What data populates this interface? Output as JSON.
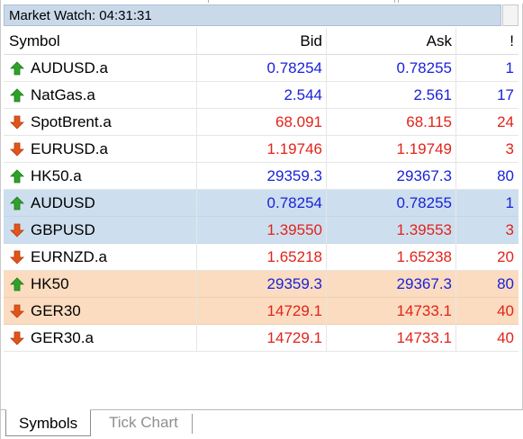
{
  "window": {
    "title": "Market Watch: 04:31:31"
  },
  "columns": {
    "symbol": "Symbol",
    "bid": "Bid",
    "ask": "Ask",
    "extra": "!"
  },
  "colors": {
    "up": "#1a22d8",
    "down": "#e2231a",
    "up_arrow": "#2fa12a",
    "down_arrow": "#e2541a",
    "selected_blue": "#cddfee",
    "selected_orange": "#fbdcc0",
    "titlebar": "#cad9ea"
  },
  "rows": [
    {
      "symbol": "AUDUSD.a",
      "bid": "0.78254",
      "ask": "0.78255",
      "spread": "1",
      "direction": "up",
      "highlight": "none"
    },
    {
      "symbol": "NatGas.a",
      "bid": "2.544",
      "ask": "2.561",
      "spread": "17",
      "direction": "up",
      "highlight": "none"
    },
    {
      "symbol": "SpotBrent.a",
      "bid": "68.091",
      "ask": "68.115",
      "spread": "24",
      "direction": "down",
      "highlight": "none"
    },
    {
      "symbol": "EURUSD.a",
      "bid": "1.19746",
      "ask": "1.19749",
      "spread": "3",
      "direction": "down",
      "highlight": "none"
    },
    {
      "symbol": "HK50.a",
      "bid": "29359.3",
      "ask": "29367.3",
      "spread": "80",
      "direction": "up",
      "highlight": "none"
    },
    {
      "symbol": "AUDUSD",
      "bid": "0.78254",
      "ask": "0.78255",
      "spread": "1",
      "direction": "up",
      "highlight": "blue"
    },
    {
      "symbol": "GBPUSD",
      "bid": "1.39550",
      "ask": "1.39553",
      "spread": "3",
      "direction": "down",
      "highlight": "blue"
    },
    {
      "symbol": "EURNZD.a",
      "bid": "1.65218",
      "ask": "1.65238",
      "spread": "20",
      "direction": "down",
      "highlight": "none"
    },
    {
      "symbol": "HK50",
      "bid": "29359.3",
      "ask": "29367.3",
      "spread": "80",
      "direction": "up",
      "highlight": "orange"
    },
    {
      "symbol": "GER30",
      "bid": "14729.1",
      "ask": "14733.1",
      "spread": "40",
      "direction": "down",
      "highlight": "orange"
    },
    {
      "symbol": "GER30.a",
      "bid": "14729.1",
      "ask": "14733.1",
      "spread": "40",
      "direction": "down",
      "highlight": "none"
    }
  ],
  "tabs": [
    {
      "label": "Symbols",
      "active": true
    },
    {
      "label": "Tick Chart",
      "active": false
    }
  ]
}
